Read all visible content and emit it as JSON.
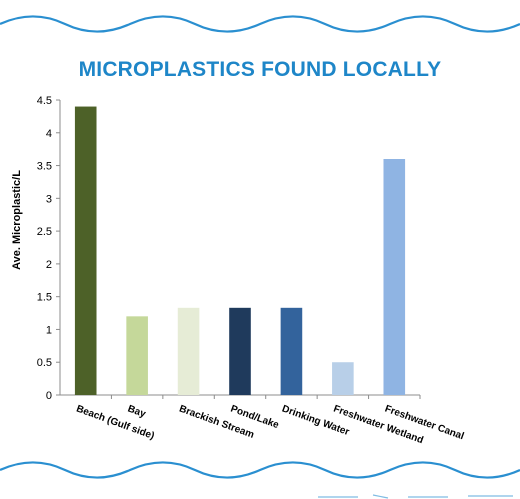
{
  "colors": {
    "title": "#1e86c8",
    "wave": "#2a8fd0",
    "bars": [
      "#4d6128",
      "#c5d89a",
      "#e6ecd6",
      "#1f3a5c",
      "#33639c",
      "#b8cfe8",
      "#8fb4e3"
    ]
  },
  "chart_data": {
    "type": "bar",
    "title": "MICROPLASTICS FOUND LOCALLY",
    "xlabel": "",
    "ylabel": "Ave. Microplastic/L",
    "categories": [
      "Beach (Gulf side)",
      "Bay",
      "Brackish Stream",
      "Pond/Lake",
      "Drinking Water",
      "Freshwater Wetland",
      "Freshwater Canal"
    ],
    "values": [
      4.4,
      1.2,
      1.33,
      1.33,
      1.33,
      0.5,
      3.6
    ],
    "ylim": [
      0,
      4.5
    ],
    "yticks": [
      "0",
      "0.5",
      "1",
      "1.5",
      "2",
      "2.5",
      "3",
      "3.5",
      "4",
      "4.5"
    ],
    "grid": false,
    "legend": "none"
  }
}
